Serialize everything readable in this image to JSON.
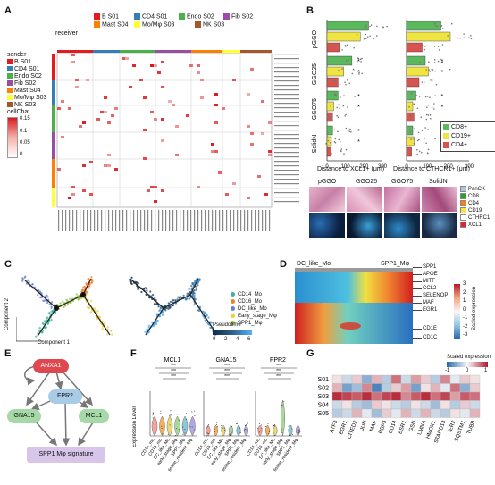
{
  "panels": {
    "A": "A",
    "B": "B",
    "C": "C",
    "D": "D",
    "E": "E",
    "F": "F",
    "G": "G"
  },
  "panelA": {
    "receiver_title": "receiver",
    "receivers": [
      {
        "label": "B S01",
        "color": "#e41a1c"
      },
      {
        "label": "CD4 S01",
        "color": "#377eb8"
      },
      {
        "label": "Endo S02",
        "color": "#4daf4a"
      },
      {
        "label": "Fib S02",
        "color": "#984ea3"
      },
      {
        "label": "Mast S04",
        "color": "#ff7f00"
      },
      {
        "label": "Mo/Mφ S03",
        "color": "#ffff33"
      },
      {
        "label": "NK S03",
        "color": "#a65628"
      }
    ],
    "sender_title": "sender",
    "senders": [
      {
        "label": "B S01",
        "color": "#e41a1c"
      },
      {
        "label": "CD4 S01",
        "color": "#377eb8"
      },
      {
        "label": "Endo S02",
        "color": "#4daf4a"
      },
      {
        "label": "Fib S02",
        "color": "#984ea3"
      },
      {
        "label": "Mast S04",
        "color": "#ff7f00"
      },
      {
        "label": "Mo/Mφ S03",
        "color": "#ffff33"
      },
      {
        "label": "NK S03",
        "color": "#a65628"
      }
    ],
    "cellchat_title": "cellChat",
    "cellchat_ticks": [
      "0.15",
      "0.1",
      "0.05",
      "0"
    ]
  },
  "panelB": {
    "groups": [
      "pGGO",
      "GGO25",
      "GGO75",
      "SolidN"
    ],
    "xlabel_left": "Distance to XCL1+ (μm)",
    "xlabel_right": "Distance to CTHCR1+ (μm)",
    "xticks": [
      "0",
      "100",
      "200",
      "300"
    ],
    "legend": [
      {
        "label": "CD8+",
        "color": "#5cb85c"
      },
      {
        "label": "CD19+",
        "color": "#f0e442"
      },
      {
        "label": "CD4+",
        "color": "#d9534f"
      }
    ],
    "image_titles": [
      "pGGO",
      "GGO25",
      "GGO75",
      "SolidN"
    ],
    "image_legend": [
      {
        "label": "PanCK",
        "color": "#b0c4de"
      },
      {
        "label": "CD8",
        "color": "#2ca02c"
      },
      {
        "label": "CD4",
        "color": "#ff7f0e"
      },
      {
        "label": "CD19",
        "color": "#f5e642"
      },
      {
        "label": "CTHRC1",
        "color": "#ffffff"
      },
      {
        "label": "XCL1",
        "color": "#e3242b"
      }
    ]
  },
  "panelC": {
    "legend": [
      {
        "label": "CD14_Mo",
        "color": "#3cb4a0"
      },
      {
        "label": "CD16_Mo",
        "color": "#f08030"
      },
      {
        "label": "DC_like_Mo",
        "color": "#6a7fd0"
      },
      {
        "label": "Early_stage_Mφ",
        "color": "#e8d040"
      },
      {
        "label": "SPP1_Mφ",
        "color": "#90c040"
      }
    ],
    "pseudotime_title": "Pseudotime",
    "pseudotime_ticks": [
      "0",
      "2",
      "4",
      "6"
    ],
    "xaxis": "Component 1",
    "yaxis": "Component 2"
  },
  "panelD": {
    "left_title": "DC_like_Mo",
    "right_title": "SPP1_Mφ",
    "genes": [
      "SPP1",
      "APOE",
      "MITF",
      "CCL2",
      "SELENOP",
      "MAF",
      "EGR1",
      "CD1E",
      "CD1C"
    ],
    "scale_title": "Scaled expression",
    "scale_ticks": [
      "3",
      "2",
      "1",
      "0",
      "-1",
      "-2",
      "-3"
    ]
  },
  "panelE": {
    "nodes": [
      "ANXA1",
      "FPR2",
      "GNA15",
      "MCL1",
      "SPP1 Mφ signature"
    ]
  },
  "panelF": {
    "titles": [
      "MCL1",
      "GNA15",
      "FPR2"
    ],
    "ylabel": "Expression Level",
    "groups": [
      "CD14_mo",
      "CD16_mo",
      "DC_like_Mo",
      "early_stage_Mφ",
      "SPP1_Mφ",
      "tissue_resident_Mφ"
    ],
    "sig": "***"
  },
  "panelG": {
    "rows": [
      "S01",
      "S02",
      "S03",
      "S04",
      "S05"
    ],
    "cols": [
      "ATF3",
      "EGR1",
      "CITED2",
      "JUN",
      "MAF",
      "RBPJ",
      "CD14",
      "ESR1",
      "GSN",
      "LMNA",
      "HMOX1",
      "STARD13",
      "IER2",
      "SQSTM1",
      "TUBB"
    ],
    "scale_title": "Scaled expression",
    "scale_ticks": [
      "-1",
      "0",
      "1"
    ]
  }
}
